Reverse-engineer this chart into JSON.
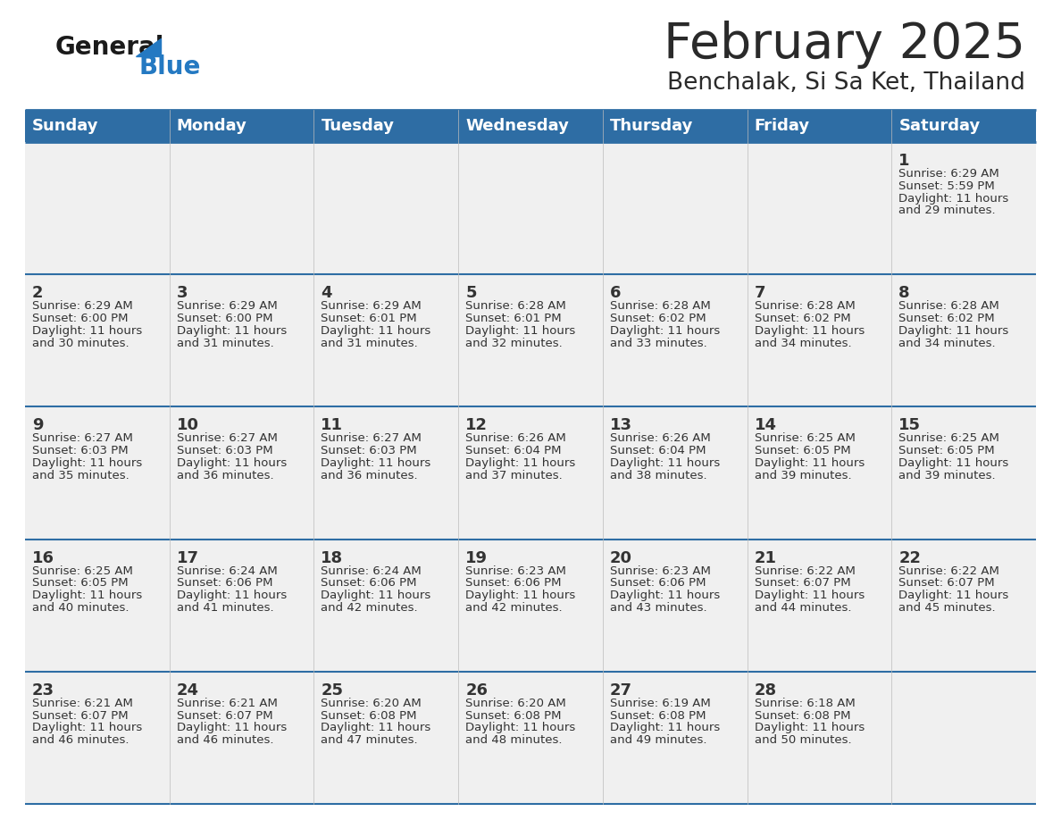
{
  "title": "February 2025",
  "subtitle": "Benchalak, Si Sa Ket, Thailand",
  "header_bg": "#2E6DA4",
  "header_text": "#FFFFFF",
  "cell_bg_light": "#F0F0F0",
  "separator_color": "#2E6DA4",
  "day_number_color": "#333333",
  "info_text_color": "#333333",
  "logo_general_color": "#1a1a1a",
  "logo_blue_color": "#2479C2",
  "day_names": [
    "Sunday",
    "Monday",
    "Tuesday",
    "Wednesday",
    "Thursday",
    "Friday",
    "Saturday"
  ],
  "calendar": [
    [
      null,
      null,
      null,
      null,
      null,
      null,
      {
        "day": "1",
        "sunrise": "6:29 AM",
        "sunset": "5:59 PM",
        "daylight_hours": "11",
        "daylight_mins": "29"
      }
    ],
    [
      {
        "day": "2",
        "sunrise": "6:29 AM",
        "sunset": "6:00 PM",
        "daylight_hours": "11",
        "daylight_mins": "30"
      },
      {
        "day": "3",
        "sunrise": "6:29 AM",
        "sunset": "6:00 PM",
        "daylight_hours": "11",
        "daylight_mins": "31"
      },
      {
        "day": "4",
        "sunrise": "6:29 AM",
        "sunset": "6:01 PM",
        "daylight_hours": "11",
        "daylight_mins": "31"
      },
      {
        "day": "5",
        "sunrise": "6:28 AM",
        "sunset": "6:01 PM",
        "daylight_hours": "11",
        "daylight_mins": "32"
      },
      {
        "day": "6",
        "sunrise": "6:28 AM",
        "sunset": "6:02 PM",
        "daylight_hours": "11",
        "daylight_mins": "33"
      },
      {
        "day": "7",
        "sunrise": "6:28 AM",
        "sunset": "6:02 PM",
        "daylight_hours": "11",
        "daylight_mins": "34"
      },
      {
        "day": "8",
        "sunrise": "6:28 AM",
        "sunset": "6:02 PM",
        "daylight_hours": "11",
        "daylight_mins": "34"
      }
    ],
    [
      {
        "day": "9",
        "sunrise": "6:27 AM",
        "sunset": "6:03 PM",
        "daylight_hours": "11",
        "daylight_mins": "35"
      },
      {
        "day": "10",
        "sunrise": "6:27 AM",
        "sunset": "6:03 PM",
        "daylight_hours": "11",
        "daylight_mins": "36"
      },
      {
        "day": "11",
        "sunrise": "6:27 AM",
        "sunset": "6:03 PM",
        "daylight_hours": "11",
        "daylight_mins": "36"
      },
      {
        "day": "12",
        "sunrise": "6:26 AM",
        "sunset": "6:04 PM",
        "daylight_hours": "11",
        "daylight_mins": "37"
      },
      {
        "day": "13",
        "sunrise": "6:26 AM",
        "sunset": "6:04 PM",
        "daylight_hours": "11",
        "daylight_mins": "38"
      },
      {
        "day": "14",
        "sunrise": "6:25 AM",
        "sunset": "6:05 PM",
        "daylight_hours": "11",
        "daylight_mins": "39"
      },
      {
        "day": "15",
        "sunrise": "6:25 AM",
        "sunset": "6:05 PM",
        "daylight_hours": "11",
        "daylight_mins": "39"
      }
    ],
    [
      {
        "day": "16",
        "sunrise": "6:25 AM",
        "sunset": "6:05 PM",
        "daylight_hours": "11",
        "daylight_mins": "40"
      },
      {
        "day": "17",
        "sunrise": "6:24 AM",
        "sunset": "6:06 PM",
        "daylight_hours": "11",
        "daylight_mins": "41"
      },
      {
        "day": "18",
        "sunrise": "6:24 AM",
        "sunset": "6:06 PM",
        "daylight_hours": "11",
        "daylight_mins": "42"
      },
      {
        "day": "19",
        "sunrise": "6:23 AM",
        "sunset": "6:06 PM",
        "daylight_hours": "11",
        "daylight_mins": "42"
      },
      {
        "day": "20",
        "sunrise": "6:23 AM",
        "sunset": "6:06 PM",
        "daylight_hours": "11",
        "daylight_mins": "43"
      },
      {
        "day": "21",
        "sunrise": "6:22 AM",
        "sunset": "6:07 PM",
        "daylight_hours": "11",
        "daylight_mins": "44"
      },
      {
        "day": "22",
        "sunrise": "6:22 AM",
        "sunset": "6:07 PM",
        "daylight_hours": "11",
        "daylight_mins": "45"
      }
    ],
    [
      {
        "day": "23",
        "sunrise": "6:21 AM",
        "sunset": "6:07 PM",
        "daylight_hours": "11",
        "daylight_mins": "46"
      },
      {
        "day": "24",
        "sunrise": "6:21 AM",
        "sunset": "6:07 PM",
        "daylight_hours": "11",
        "daylight_mins": "46"
      },
      {
        "day": "25",
        "sunrise": "6:20 AM",
        "sunset": "6:08 PM",
        "daylight_hours": "11",
        "daylight_mins": "47"
      },
      {
        "day": "26",
        "sunrise": "6:20 AM",
        "sunset": "6:08 PM",
        "daylight_hours": "11",
        "daylight_mins": "48"
      },
      {
        "day": "27",
        "sunrise": "6:19 AM",
        "sunset": "6:08 PM",
        "daylight_hours": "11",
        "daylight_mins": "49"
      },
      {
        "day": "28",
        "sunrise": "6:18 AM",
        "sunset": "6:08 PM",
        "daylight_hours": "11",
        "daylight_mins": "50"
      },
      null
    ]
  ]
}
